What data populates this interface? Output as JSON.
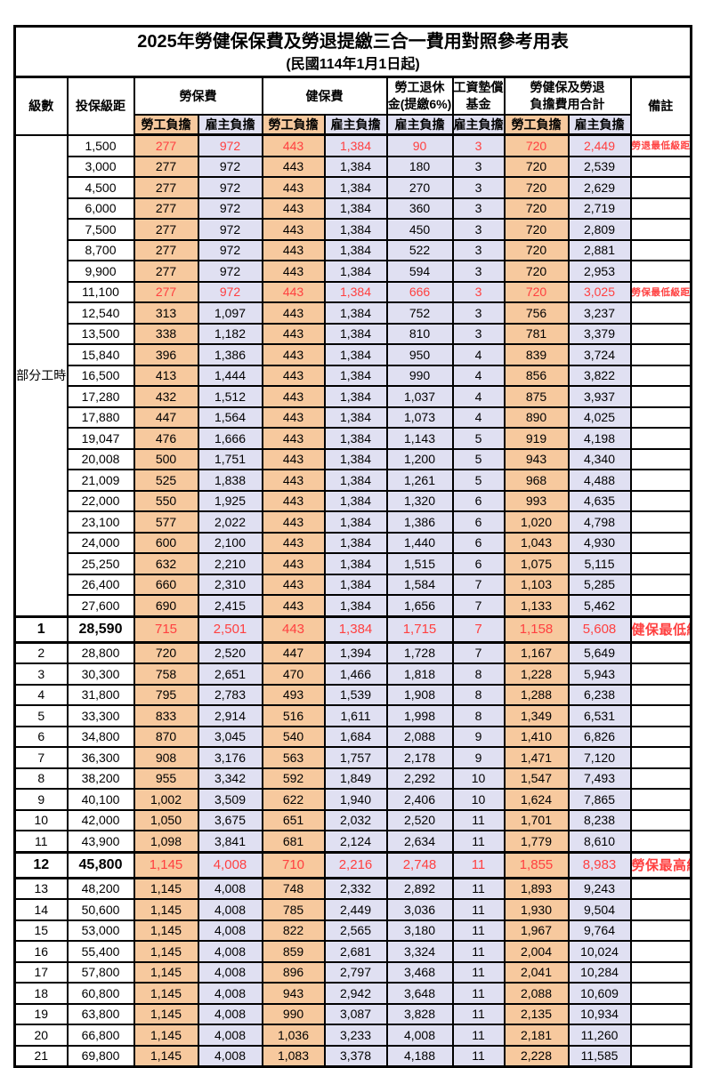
{
  "title": "2025年勞健保保費及勞退提繳三合一費用對照參考用表",
  "subtitle": "(民國114年1月1日起)",
  "colors": {
    "employee_bg": "#F7C99E",
    "employer_bg": "#E0E0F2",
    "highlight_text": "#FF4040",
    "border": "#000000"
  },
  "header": {
    "level": "級數",
    "bracket": "投保級距",
    "labor_insurance": "勞保費",
    "health_insurance": "健保費",
    "pension_line1": "勞工退休",
    "pension_line2": "金(提繳6%)",
    "wage_fund_line1": "工資墊償",
    "wage_fund_line2": "基金",
    "total_line1": "勞健保及勞退",
    "total_line2": "負擔費用合計",
    "remark": "備註",
    "employee_share": "勞工負擔",
    "employer_share": "雇主負擔"
  },
  "chart_data": {
    "type": "table",
    "part_time_label": "部分工時",
    "part_time_span": 23,
    "value_columns": [
      "勞保費勞工負擔",
      "勞保費雇主負擔",
      "健保費勞工負擔",
      "健保費雇主負擔",
      "勞工退休金(提繳6%)雇主負擔",
      "工資墊償基金雇主負擔",
      "合計勞工負擔",
      "合計雇主負擔"
    ],
    "rows": [
      {
        "level": "",
        "bracket": "1,500",
        "values": [
          "277",
          "972",
          "443",
          "1,384",
          "90",
          "3",
          "720",
          "2,449"
        ],
        "remark": "勞退最低級距",
        "highlight": true,
        "emphasis": false
      },
      {
        "level": "",
        "bracket": "3,000",
        "values": [
          "277",
          "972",
          "443",
          "1,384",
          "180",
          "3",
          "720",
          "2,539"
        ],
        "remark": "",
        "highlight": false,
        "emphasis": false
      },
      {
        "level": "",
        "bracket": "4,500",
        "values": [
          "277",
          "972",
          "443",
          "1,384",
          "270",
          "3",
          "720",
          "2,629"
        ],
        "remark": "",
        "highlight": false,
        "emphasis": false
      },
      {
        "level": "",
        "bracket": "6,000",
        "values": [
          "277",
          "972",
          "443",
          "1,384",
          "360",
          "3",
          "720",
          "2,719"
        ],
        "remark": "",
        "highlight": false,
        "emphasis": false
      },
      {
        "level": "",
        "bracket": "7,500",
        "values": [
          "277",
          "972",
          "443",
          "1,384",
          "450",
          "3",
          "720",
          "2,809"
        ],
        "remark": "",
        "highlight": false,
        "emphasis": false
      },
      {
        "level": "",
        "bracket": "8,700",
        "values": [
          "277",
          "972",
          "443",
          "1,384",
          "522",
          "3",
          "720",
          "2,881"
        ],
        "remark": "",
        "highlight": false,
        "emphasis": false
      },
      {
        "level": "",
        "bracket": "9,900",
        "values": [
          "277",
          "972",
          "443",
          "1,384",
          "594",
          "3",
          "720",
          "2,953"
        ],
        "remark": "",
        "highlight": false,
        "emphasis": false
      },
      {
        "level": "",
        "bracket": "11,100",
        "values": [
          "277",
          "972",
          "443",
          "1,384",
          "666",
          "3",
          "720",
          "3,025"
        ],
        "remark": "勞保最低級距",
        "highlight": true,
        "emphasis": false
      },
      {
        "level": "",
        "bracket": "12,540",
        "values": [
          "313",
          "1,097",
          "443",
          "1,384",
          "752",
          "3",
          "756",
          "3,237"
        ],
        "remark": "",
        "highlight": false,
        "emphasis": false
      },
      {
        "level": "",
        "bracket": "13,500",
        "values": [
          "338",
          "1,182",
          "443",
          "1,384",
          "810",
          "3",
          "781",
          "3,379"
        ],
        "remark": "",
        "highlight": false,
        "emphasis": false
      },
      {
        "level": "",
        "bracket": "15,840",
        "values": [
          "396",
          "1,386",
          "443",
          "1,384",
          "950",
          "4",
          "839",
          "3,724"
        ],
        "remark": "",
        "highlight": false,
        "emphasis": false
      },
      {
        "level": "",
        "bracket": "16,500",
        "values": [
          "413",
          "1,444",
          "443",
          "1,384",
          "990",
          "4",
          "856",
          "3,822"
        ],
        "remark": "",
        "highlight": false,
        "emphasis": false
      },
      {
        "level": "",
        "bracket": "17,280",
        "values": [
          "432",
          "1,512",
          "443",
          "1,384",
          "1,037",
          "4",
          "875",
          "3,937"
        ],
        "remark": "",
        "highlight": false,
        "emphasis": false
      },
      {
        "level": "",
        "bracket": "17,880",
        "values": [
          "447",
          "1,564",
          "443",
          "1,384",
          "1,073",
          "4",
          "890",
          "4,025"
        ],
        "remark": "",
        "highlight": false,
        "emphasis": false
      },
      {
        "level": "",
        "bracket": "19,047",
        "values": [
          "476",
          "1,666",
          "443",
          "1,384",
          "1,143",
          "5",
          "919",
          "4,198"
        ],
        "remark": "",
        "highlight": false,
        "emphasis": false
      },
      {
        "level": "",
        "bracket": "20,008",
        "values": [
          "500",
          "1,751",
          "443",
          "1,384",
          "1,200",
          "5",
          "943",
          "4,340"
        ],
        "remark": "",
        "highlight": false,
        "emphasis": false
      },
      {
        "level": "",
        "bracket": "21,009",
        "values": [
          "525",
          "1,838",
          "443",
          "1,384",
          "1,261",
          "5",
          "968",
          "4,488"
        ],
        "remark": "",
        "highlight": false,
        "emphasis": false
      },
      {
        "level": "",
        "bracket": "22,000",
        "values": [
          "550",
          "1,925",
          "443",
          "1,384",
          "1,320",
          "6",
          "993",
          "4,635"
        ],
        "remark": "",
        "highlight": false,
        "emphasis": false
      },
      {
        "level": "",
        "bracket": "23,100",
        "values": [
          "577",
          "2,022",
          "443",
          "1,384",
          "1,386",
          "6",
          "1,020",
          "4,798"
        ],
        "remark": "",
        "highlight": false,
        "emphasis": false
      },
      {
        "level": "",
        "bracket": "24,000",
        "values": [
          "600",
          "2,100",
          "443",
          "1,384",
          "1,440",
          "6",
          "1,043",
          "4,930"
        ],
        "remark": "",
        "highlight": false,
        "emphasis": false
      },
      {
        "level": "",
        "bracket": "25,250",
        "values": [
          "632",
          "2,210",
          "443",
          "1,384",
          "1,515",
          "6",
          "1,075",
          "5,115"
        ],
        "remark": "",
        "highlight": false,
        "emphasis": false
      },
      {
        "level": "",
        "bracket": "26,400",
        "values": [
          "660",
          "2,310",
          "443",
          "1,384",
          "1,584",
          "7",
          "1,103",
          "5,285"
        ],
        "remark": "",
        "highlight": false,
        "emphasis": false
      },
      {
        "level": "",
        "bracket": "27,600",
        "values": [
          "690",
          "2,415",
          "443",
          "1,384",
          "1,656",
          "7",
          "1,133",
          "5,462"
        ],
        "remark": "",
        "highlight": false,
        "emphasis": false
      },
      {
        "level": "1",
        "bracket": "28,590",
        "values": [
          "715",
          "2,501",
          "443",
          "1,384",
          "1,715",
          "7",
          "1,158",
          "5,608"
        ],
        "remark": "健保最低級距",
        "highlight": true,
        "emphasis": true
      },
      {
        "level": "2",
        "bracket": "28,800",
        "values": [
          "720",
          "2,520",
          "447",
          "1,394",
          "1,728",
          "7",
          "1,167",
          "5,649"
        ],
        "remark": "",
        "highlight": false,
        "emphasis": false
      },
      {
        "level": "3",
        "bracket": "30,300",
        "values": [
          "758",
          "2,651",
          "470",
          "1,466",
          "1,818",
          "8",
          "1,228",
          "5,943"
        ],
        "remark": "",
        "highlight": false,
        "emphasis": false
      },
      {
        "level": "4",
        "bracket": "31,800",
        "values": [
          "795",
          "2,783",
          "493",
          "1,539",
          "1,908",
          "8",
          "1,288",
          "6,238"
        ],
        "remark": "",
        "highlight": false,
        "emphasis": false
      },
      {
        "level": "5",
        "bracket": "33,300",
        "values": [
          "833",
          "2,914",
          "516",
          "1,611",
          "1,998",
          "8",
          "1,349",
          "6,531"
        ],
        "remark": "",
        "highlight": false,
        "emphasis": false
      },
      {
        "level": "6",
        "bracket": "34,800",
        "values": [
          "870",
          "3,045",
          "540",
          "1,684",
          "2,088",
          "9",
          "1,410",
          "6,826"
        ],
        "remark": "",
        "highlight": false,
        "emphasis": false
      },
      {
        "level": "7",
        "bracket": "36,300",
        "values": [
          "908",
          "3,176",
          "563",
          "1,757",
          "2,178",
          "9",
          "1,471",
          "7,120"
        ],
        "remark": "",
        "highlight": false,
        "emphasis": false
      },
      {
        "level": "8",
        "bracket": "38,200",
        "values": [
          "955",
          "3,342",
          "592",
          "1,849",
          "2,292",
          "10",
          "1,547",
          "7,493"
        ],
        "remark": "",
        "highlight": false,
        "emphasis": false
      },
      {
        "level": "9",
        "bracket": "40,100",
        "values": [
          "1,002",
          "3,509",
          "622",
          "1,940",
          "2,406",
          "10",
          "1,624",
          "7,865"
        ],
        "remark": "",
        "highlight": false,
        "emphasis": false
      },
      {
        "level": "10",
        "bracket": "42,000",
        "values": [
          "1,050",
          "3,675",
          "651",
          "2,032",
          "2,520",
          "11",
          "1,701",
          "8,238"
        ],
        "remark": "",
        "highlight": false,
        "emphasis": false
      },
      {
        "level": "11",
        "bracket": "43,900",
        "values": [
          "1,098",
          "3,841",
          "681",
          "2,124",
          "2,634",
          "11",
          "1,779",
          "8,610"
        ],
        "remark": "",
        "highlight": false,
        "emphasis": false
      },
      {
        "level": "12",
        "bracket": "45,800",
        "values": [
          "1,145",
          "4,008",
          "710",
          "2,216",
          "2,748",
          "11",
          "1,855",
          "8,983"
        ],
        "remark": "勞保最高級距",
        "highlight": true,
        "emphasis": true
      },
      {
        "level": "13",
        "bracket": "48,200",
        "values": [
          "1,145",
          "4,008",
          "748",
          "2,332",
          "2,892",
          "11",
          "1,893",
          "9,243"
        ],
        "remark": "",
        "highlight": false,
        "emphasis": false
      },
      {
        "level": "14",
        "bracket": "50,600",
        "values": [
          "1,145",
          "4,008",
          "785",
          "2,449",
          "3,036",
          "11",
          "1,930",
          "9,504"
        ],
        "remark": "",
        "highlight": false,
        "emphasis": false
      },
      {
        "level": "15",
        "bracket": "53,000",
        "values": [
          "1,145",
          "4,008",
          "822",
          "2,565",
          "3,180",
          "11",
          "1,967",
          "9,764"
        ],
        "remark": "",
        "highlight": false,
        "emphasis": false
      },
      {
        "level": "16",
        "bracket": "55,400",
        "values": [
          "1,145",
          "4,008",
          "859",
          "2,681",
          "3,324",
          "11",
          "2,004",
          "10,024"
        ],
        "remark": "",
        "highlight": false,
        "emphasis": false
      },
      {
        "level": "17",
        "bracket": "57,800",
        "values": [
          "1,145",
          "4,008",
          "896",
          "2,797",
          "3,468",
          "11",
          "2,041",
          "10,284"
        ],
        "remark": "",
        "highlight": false,
        "emphasis": false
      },
      {
        "level": "18",
        "bracket": "60,800",
        "values": [
          "1,145",
          "4,008",
          "943",
          "2,942",
          "3,648",
          "11",
          "2,088",
          "10,609"
        ],
        "remark": "",
        "highlight": false,
        "emphasis": false
      },
      {
        "level": "19",
        "bracket": "63,800",
        "values": [
          "1,145",
          "4,008",
          "990",
          "3,087",
          "3,828",
          "11",
          "2,135",
          "10,934"
        ],
        "remark": "",
        "highlight": false,
        "emphasis": false
      },
      {
        "level": "20",
        "bracket": "66,800",
        "values": [
          "1,145",
          "4,008",
          "1,036",
          "3,233",
          "4,008",
          "11",
          "2,181",
          "11,260"
        ],
        "remark": "",
        "highlight": false,
        "emphasis": false
      },
      {
        "level": "21",
        "bracket": "69,800",
        "values": [
          "1,145",
          "4,008",
          "1,083",
          "3,378",
          "4,188",
          "11",
          "2,228",
          "11,585"
        ],
        "remark": "",
        "highlight": false,
        "emphasis": false
      }
    ]
  }
}
